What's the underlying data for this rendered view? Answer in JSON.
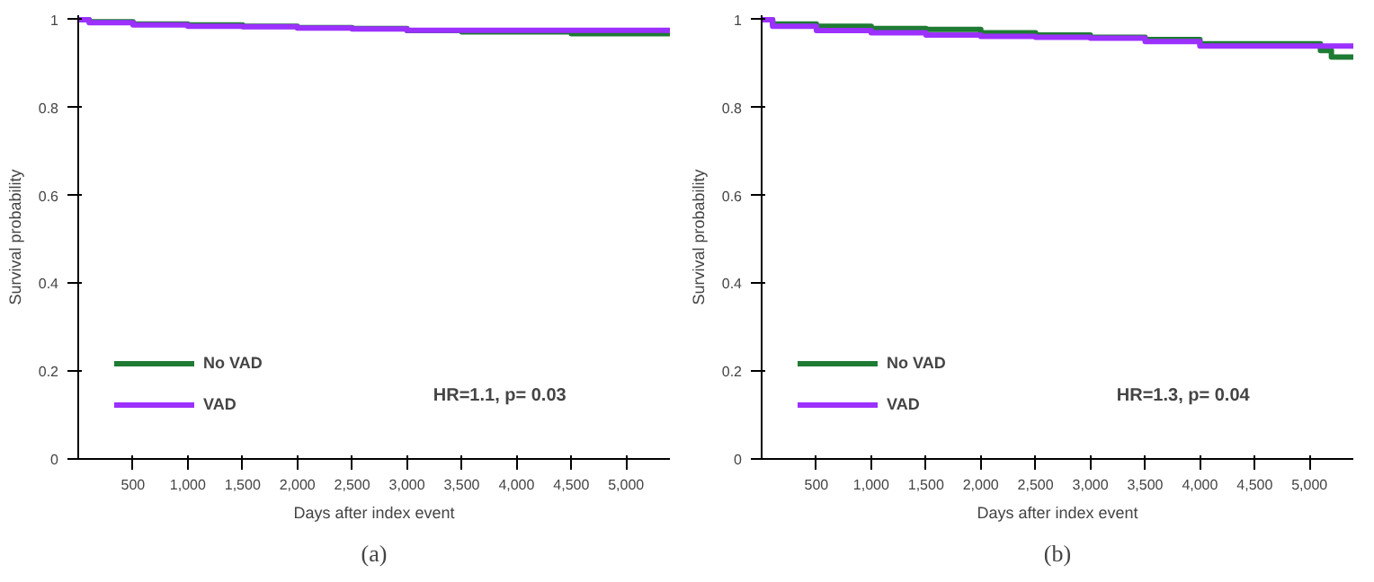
{
  "chart_data": [
    {
      "type": "step",
      "title": "(a)",
      "xlabel": "Days after index event",
      "ylabel": "Survival probability",
      "annotations": [
        "HR=1.1,  p= 0.03"
      ],
      "legend": "bottom left",
      "grid": false,
      "x": [
        0,
        100,
        500,
        1000,
        1500,
        2000,
        2500,
        3000,
        3500,
        4000,
        4500,
        5000,
        5400
      ],
      "series": [
        {
          "name": "No VAD",
          "color": "#1e7b34",
          "values": [
            1,
            0.995,
            0.99,
            0.988,
            0.985,
            0.982,
            0.98,
            0.975,
            0.972,
            0.972,
            0.968,
            0.968,
            0.968
          ]
        },
        {
          "name": "VAD",
          "color": "#9b30ff",
          "values": [
            1,
            0.993,
            0.988,
            0.985,
            0.984,
            0.981,
            0.979,
            0.976,
            0.976,
            0.976,
            0.976,
            0.976,
            0.976
          ]
        }
      ],
      "xlim": [
        0,
        5400
      ],
      "ylim": [
        0,
        1.01
      ],
      "xticks": [
        500,
        {
          "value": 1000,
          "label": "1,000"
        },
        {
          "value": 1500,
          "label": "1,500"
        },
        {
          "value": 2000,
          "label": "2,000"
        },
        {
          "value": 2500,
          "label": "2,500"
        },
        {
          "value": 3000,
          "label": "3,000"
        },
        {
          "value": 3500,
          "label": "3,500"
        },
        {
          "value": 4000,
          "label": "4,000"
        },
        {
          "value": 4500,
          "label": "4,500"
        },
        {
          "value": 5000,
          "label": "5,000"
        }
      ],
      "yticks": [
        0,
        0.2,
        0.4,
        0.6,
        0.8,
        1
      ]
    },
    {
      "type": "step",
      "title": "(b)",
      "xlabel": "Days after index event",
      "ylabel": "Survival probability",
      "annotations": [
        "HR=1.3, p= 0.04"
      ],
      "legend": "bottom left",
      "grid": false,
      "x": [
        0,
        100,
        500,
        1000,
        1500,
        2000,
        2500,
        3000,
        3500,
        4000,
        4500,
        5000,
        5100,
        5200,
        5400
      ],
      "series": [
        {
          "name": "No VAD",
          "color": "#1e7b34",
          "values": [
            1,
            0.99,
            0.985,
            0.98,
            0.978,
            0.97,
            0.965,
            0.96,
            0.955,
            0.945,
            0.945,
            0.945,
            0.93,
            0.915,
            0.915
          ]
        },
        {
          "name": "VAD",
          "color": "#9b30ff",
          "values": [
            1,
            0.985,
            0.975,
            0.97,
            0.965,
            0.962,
            0.96,
            0.958,
            0.95,
            0.94,
            0.94,
            0.94,
            0.94,
            0.94,
            0.94
          ]
        }
      ],
      "xlim": [
        0,
        5400
      ],
      "ylim": [
        0,
        1.01
      ],
      "xticks": [
        500,
        {
          "value": 1000,
          "label": "1,000"
        },
        {
          "value": 1500,
          "label": "1,500"
        },
        {
          "value": 2000,
          "label": "2,000"
        },
        {
          "value": 2500,
          "label": "2,500"
        },
        {
          "value": 3000,
          "label": "3,000"
        },
        {
          "value": 3500,
          "label": "3,500"
        },
        {
          "value": 4000,
          "label": "4,000"
        },
        {
          "value": 4500,
          "label": "4,500"
        },
        {
          "value": 5000,
          "label": "5,000"
        }
      ],
      "yticks": [
        0,
        0.2,
        0.4,
        0.6,
        0.8,
        1
      ]
    }
  ]
}
